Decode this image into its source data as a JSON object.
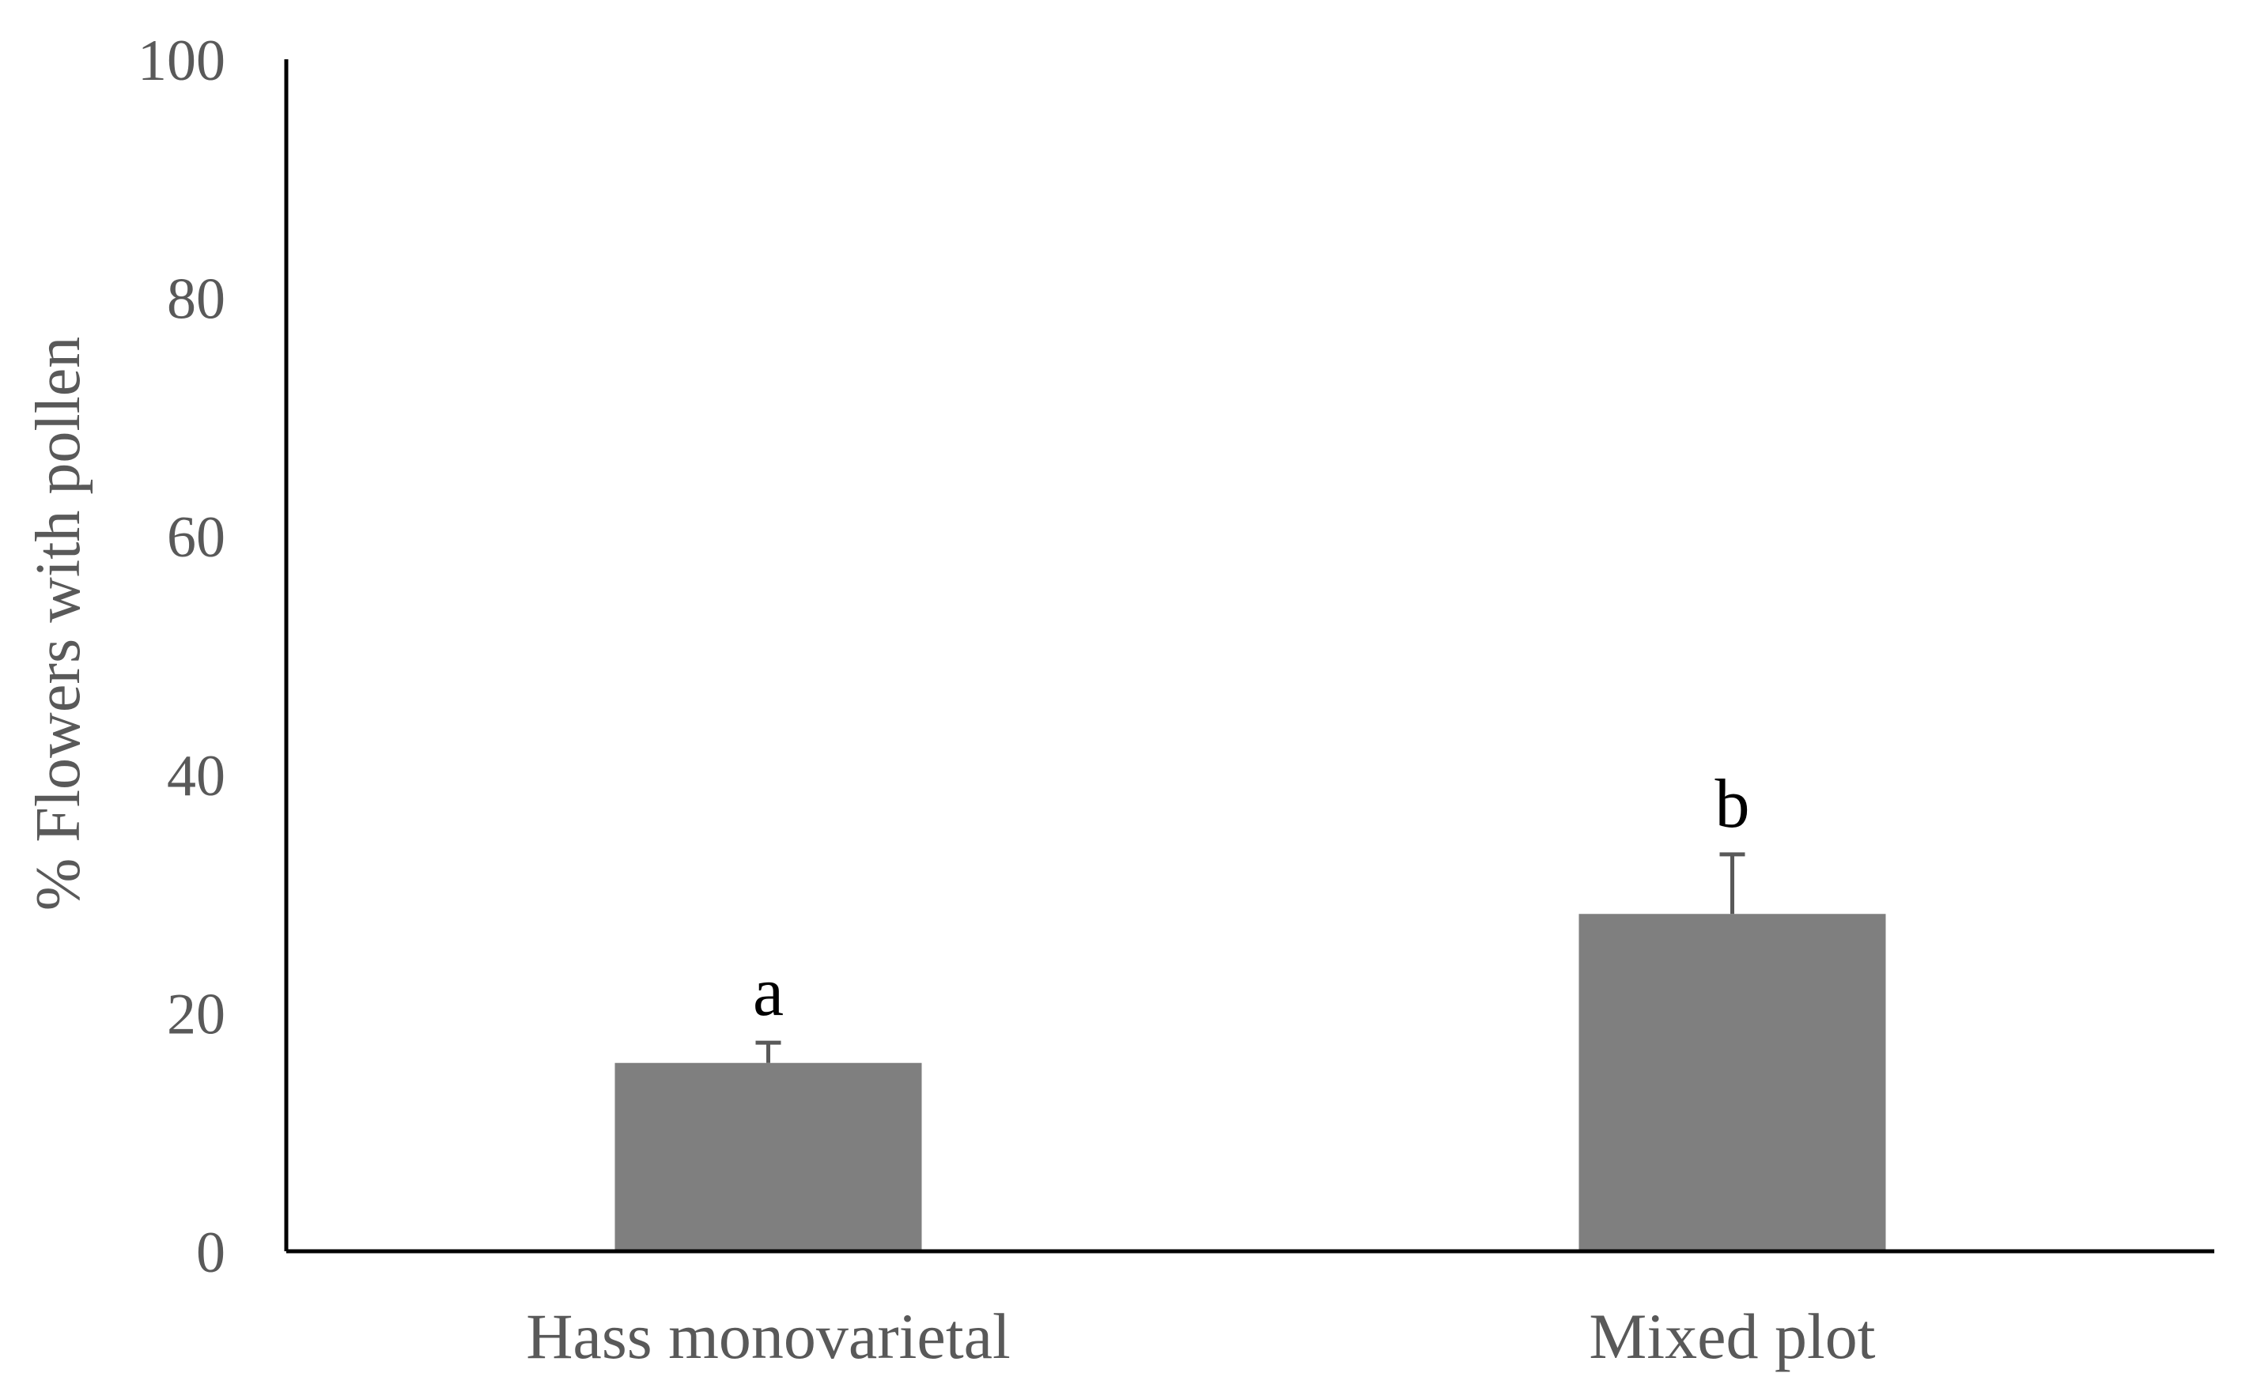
{
  "chart_data": {
    "type": "bar",
    "title": "",
    "xlabel": "",
    "ylabel": "% Flowers with pollen",
    "ylim": [
      0,
      100
    ],
    "yticks": [
      0,
      20,
      40,
      60,
      80,
      100
    ],
    "categories": [
      "Hass monovarietal",
      "Mixed plot"
    ],
    "values": [
      15.8,
      28.3
    ],
    "error_plus": [
      1.7,
      5.0
    ],
    "significance_letters": [
      "a",
      "b"
    ],
    "grid": false,
    "legend": "none",
    "colors": {
      "bar": "#7f7f7f",
      "axis": "#000000",
      "tick_text": "#595959",
      "letter_text": "#000000"
    }
  }
}
